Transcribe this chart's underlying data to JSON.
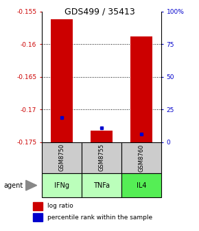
{
  "title": "GDS499 / 35413",
  "samples": [
    "GSM8750",
    "GSM8755",
    "GSM8760"
  ],
  "agents": [
    "IFNg",
    "TNFa",
    "IL4"
  ],
  "ymin": -0.175,
  "ymax": -0.155,
  "yticks": [
    -0.175,
    -0.17,
    -0.165,
    -0.16,
    -0.155
  ],
  "ytick_labels": [
    "-0.175",
    "-0.17",
    "-0.165",
    "-0.16",
    "-0.155"
  ],
  "right_yticks": [
    0,
    25,
    50,
    75,
    100
  ],
  "right_ytick_labels": [
    "0",
    "25",
    "50",
    "75",
    "100%"
  ],
  "log_ratio_base": -0.175,
  "log_ratio_tops": [
    -0.1562,
    -0.1732,
    -0.1588
  ],
  "percentile_values": [
    -0.1712,
    -0.1728,
    -0.1738
  ],
  "bar_color": "#cc0000",
  "pct_color": "#0000cc",
  "bar_width": 0.55,
  "sample_box_color": "#cccccc",
  "agent_box_colors": [
    "#bbffbb",
    "#bbffbb",
    "#55ee55"
  ],
  "left_label_color": "#cc0000",
  "right_label_color": "#0000cc",
  "grid_color": "black"
}
